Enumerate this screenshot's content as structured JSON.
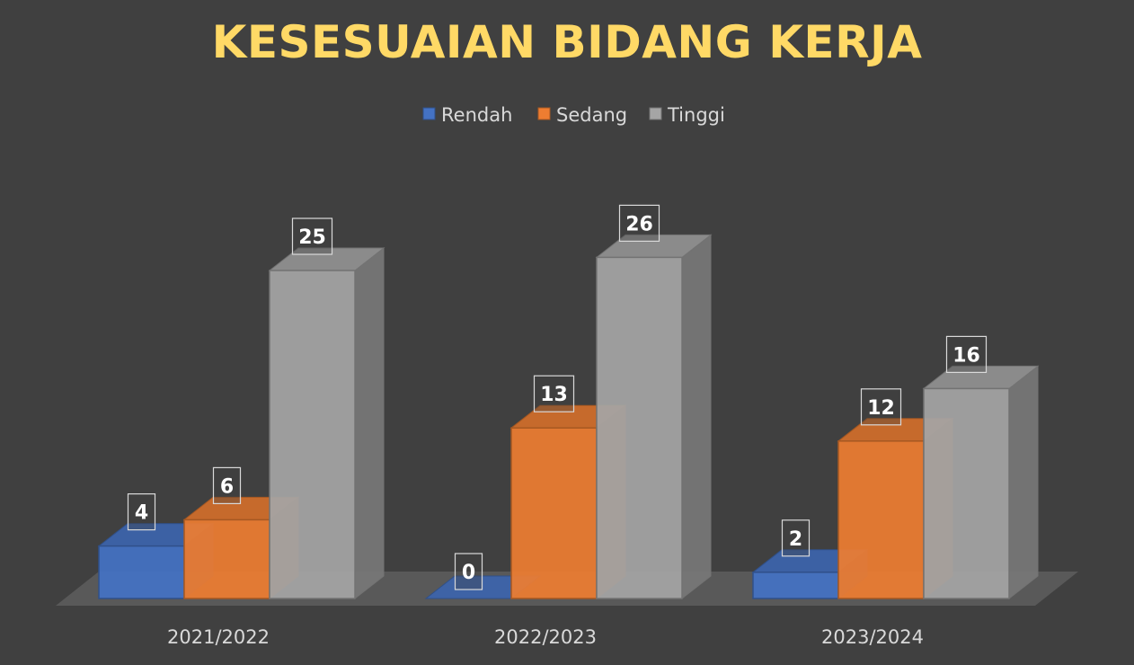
{
  "chart_data": {
    "type": "bar",
    "title": "KESESUAIAN BIDANG KERJA",
    "categories": [
      "2021/2022",
      "2022/2023",
      "2023/2024"
    ],
    "series": [
      {
        "name": "Rendah",
        "values": [
          4,
          0,
          2
        ],
        "color": "#4472C4"
      },
      {
        "name": "Sedang",
        "values": [
          6,
          13,
          12
        ],
        "color": "#ED7D31"
      },
      {
        "name": "Tinggi",
        "values": [
          25,
          26,
          16
        ],
        "color": "#A5A5A5"
      }
    ],
    "legend": "top",
    "grid": false,
    "data_labels": true,
    "style": "3d-clustered-column"
  }
}
